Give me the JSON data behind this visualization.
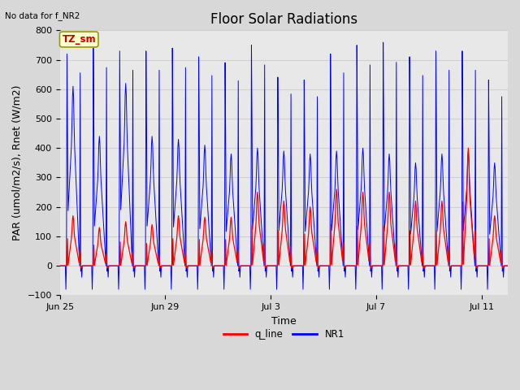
{
  "title": "Floor Solar Radiations",
  "top_left_text": "No data for f_NR2",
  "xlabel": "Time",
  "ylabel": "PAR (umol/m2/s), Rnet (W/m2)",
  "ylim": [
    -100,
    800
  ],
  "yticks": [
    -100,
    0,
    100,
    200,
    300,
    400,
    500,
    600,
    700,
    800
  ],
  "background_color": "#d8d8d8",
  "plot_bg_color": "#e8e8e8",
  "legend_labels": [
    "q_line",
    "NR1"
  ],
  "legend_colors": [
    "#ff0000",
    "#0000ff"
  ],
  "annotation_text": "TZ_sm",
  "annotation_color": "#cc0000",
  "annotation_bg": "#ffffcc",
  "annotation_border": "#999900",
  "num_days": 17,
  "xtick_positions": [
    0,
    4,
    8,
    12,
    16
  ],
  "xtick_labels": [
    "Jun 25",
    "Jun 29",
    "Jul 3",
    "Jul 7",
    "Jul 11"
  ],
  "title_fontsize": 12,
  "label_fontsize": 9,
  "tick_fontsize": 8,
  "grid_color": "#d0d0d0",
  "line_color_red": "#ff0000",
  "line_color_blue": "#0000ff",
  "nr1_peaks": [
    730,
    750,
    740,
    740,
    750,
    720,
    700,
    760,
    650,
    640,
    730,
    760,
    770,
    720,
    740,
    740,
    640
  ],
  "nr1_secondary_peaks": [
    610,
    440,
    620,
    440,
    430,
    410,
    380,
    400,
    390,
    380,
    390,
    400,
    380,
    350,
    380,
    390,
    350
  ],
  "q_peaks": [
    170,
    130,
    150,
    140,
    170,
    165,
    165,
    250,
    220,
    200,
    260,
    250,
    250,
    220,
    220,
    400,
    170
  ]
}
